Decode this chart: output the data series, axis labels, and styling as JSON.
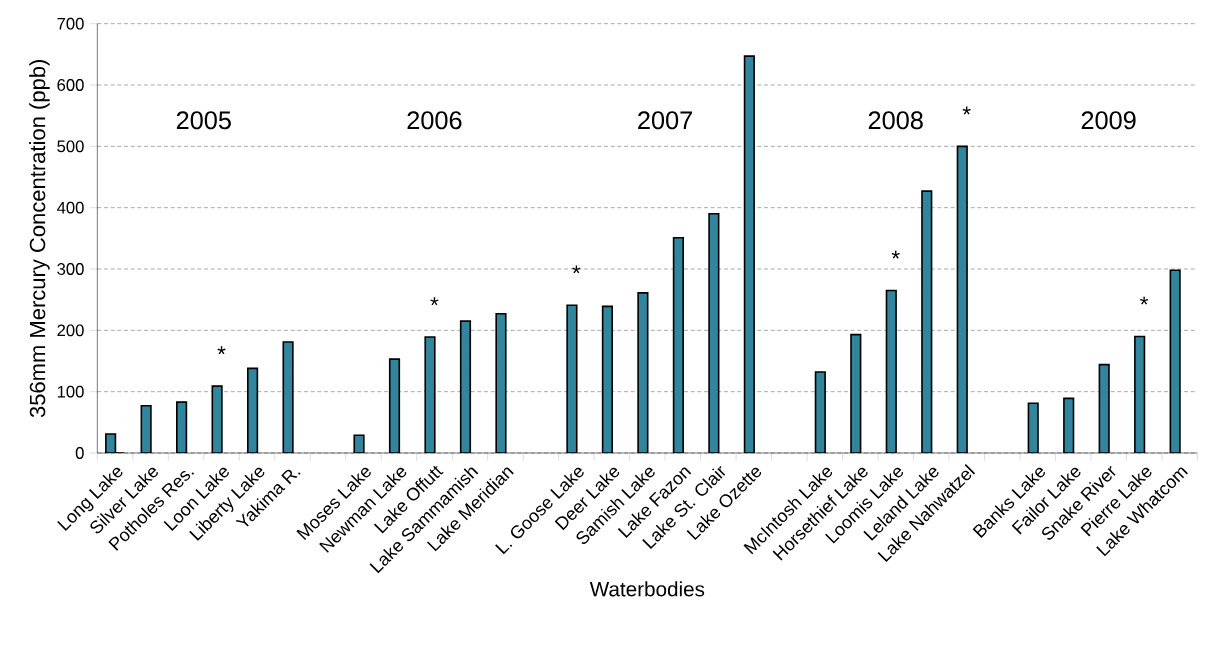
{
  "chart_data": {
    "type": "bar",
    "xlabel": "Waterbodies",
    "ylabel": "356mm Mercury Concentration (ppb)",
    "categories": [
      "Long Lake",
      "Silver Lake",
      "Potholes Res.",
      "Loon Lake",
      "Liberty Lake",
      "Yakima R.",
      null,
      "Moses Lake",
      "Newman Lake",
      "Lake Offutt",
      "Lake Sammamish",
      "Lake Meridian",
      null,
      "L. Goose Lake",
      "Deer Lake",
      "Samish Lake",
      "Lake Fazon",
      "Lake St. Clair",
      "Lake Ozette",
      null,
      "McIntosh Lake",
      "Horsethief Lake",
      "Loomis Lake",
      "Leland Lake",
      "Lake Nahwatzel",
      null,
      "Banks Lake",
      "Failor Lake",
      "Snake River",
      "Pierre Lake",
      "Lake Whatcom"
    ],
    "series": [
      {
        "color": "#31859c",
        "values": [
          31,
          77,
          83,
          109,
          138,
          181,
          null,
          29,
          153,
          189,
          215,
          227,
          null,
          241,
          239,
          261,
          351,
          390,
          647,
          null,
          132,
          193,
          265,
          427,
          500,
          null,
          81,
          89,
          144,
          190,
          298
        ]
      },
      {
        "color": "#31859c",
        "values": [
          0,
          null,
          null,
          null,
          null,
          null,
          null,
          null,
          null,
          null,
          null,
          null,
          null,
          null,
          null,
          null,
          null,
          null,
          null,
          null,
          null,
          null,
          null,
          null,
          null,
          null,
          null,
          null,
          null,
          null,
          null
        ]
      }
    ],
    "ylim": [
      0,
      700
    ],
    "yticks": [
      0,
      100,
      200,
      300,
      400,
      500,
      600,
      700
    ],
    "grid": "y",
    "annotations": [
      "2005",
      "2006",
      "2007",
      "2008",
      "2009",
      {
        "text": "*",
        "x": "Loon Lake",
        "y": 109
      },
      {
        "text": "*",
        "x": "Lake Offutt",
        "y": 189
      },
      {
        "text": "*",
        "x": "L. Goose Lake",
        "y": 241
      },
      {
        "text": "*",
        "x": "Loomis Lake",
        "y": 265
      },
      {
        "text": "*",
        "x": "Lake Nahwatzel",
        "y": 500
      },
      {
        "text": "*",
        "x": "Pierre Lake",
        "y": 190
      }
    ]
  }
}
